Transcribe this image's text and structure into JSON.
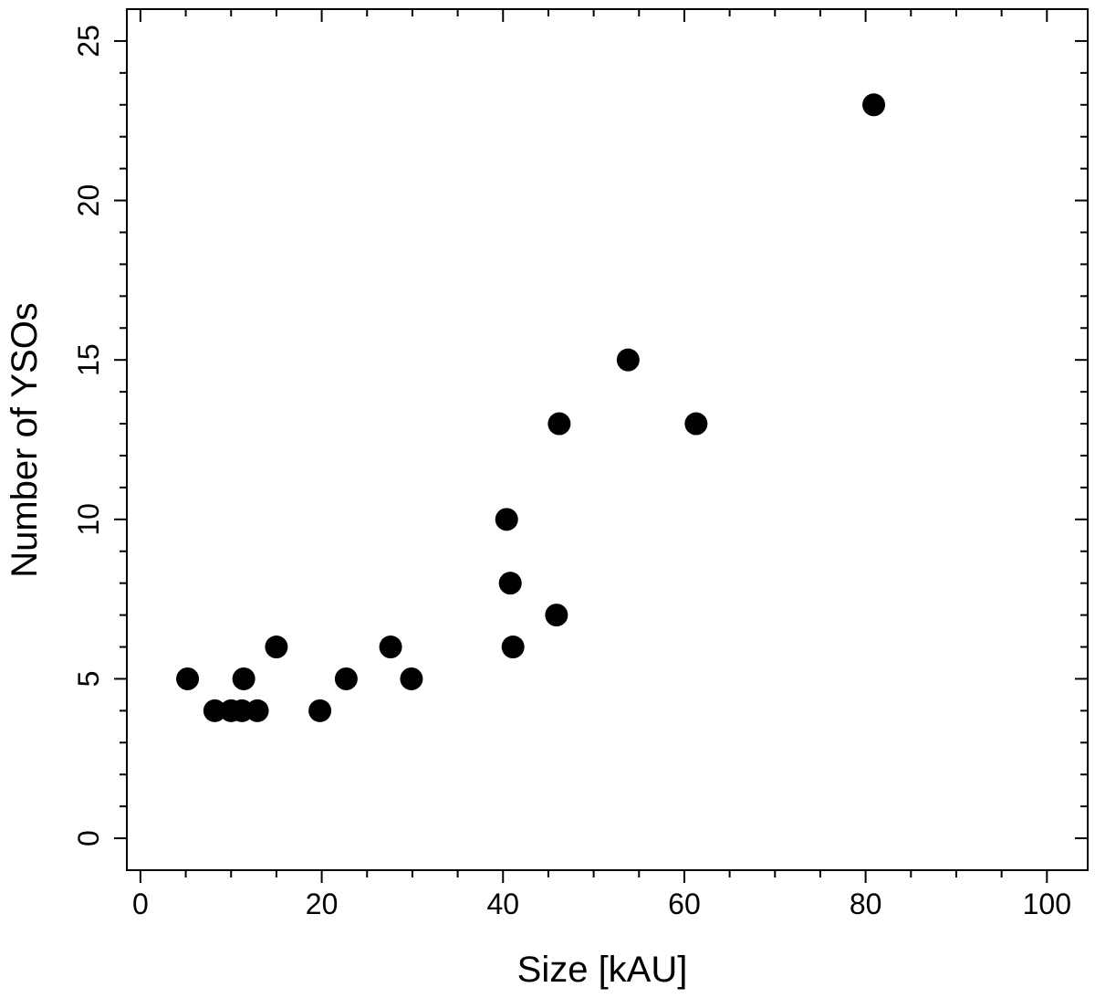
{
  "chart_data": {
    "type": "scatter",
    "title": "",
    "xlabel": "Size [kAU]",
    "ylabel": "Number of YSOs",
    "xlim": [
      -1.5,
      104.5
    ],
    "ylim": [
      -1,
      26
    ],
    "x_major_ticks": [
      0,
      20,
      40,
      60,
      80,
      100
    ],
    "x_minor_step": 5,
    "y_major_ticks": [
      0,
      5,
      10,
      15,
      20,
      25
    ],
    "y_minor_step": 1,
    "grid": false,
    "legend": "none",
    "marker_color": "#000000",
    "points": [
      {
        "x": 5.2,
        "y": 5
      },
      {
        "x": 8.2,
        "y": 4
      },
      {
        "x": 10.0,
        "y": 4
      },
      {
        "x": 11.2,
        "y": 4
      },
      {
        "x": 11.4,
        "y": 5
      },
      {
        "x": 12.9,
        "y": 4
      },
      {
        "x": 15.0,
        "y": 6
      },
      {
        "x": 19.8,
        "y": 4
      },
      {
        "x": 22.7,
        "y": 5
      },
      {
        "x": 27.6,
        "y": 6
      },
      {
        "x": 29.9,
        "y": 5
      },
      {
        "x": 40.4,
        "y": 10
      },
      {
        "x": 40.8,
        "y": 8
      },
      {
        "x": 41.1,
        "y": 6
      },
      {
        "x": 45.9,
        "y": 7
      },
      {
        "x": 46.2,
        "y": 13
      },
      {
        "x": 53.8,
        "y": 15
      },
      {
        "x": 61.3,
        "y": 13
      },
      {
        "x": 80.9,
        "y": 23
      }
    ]
  }
}
